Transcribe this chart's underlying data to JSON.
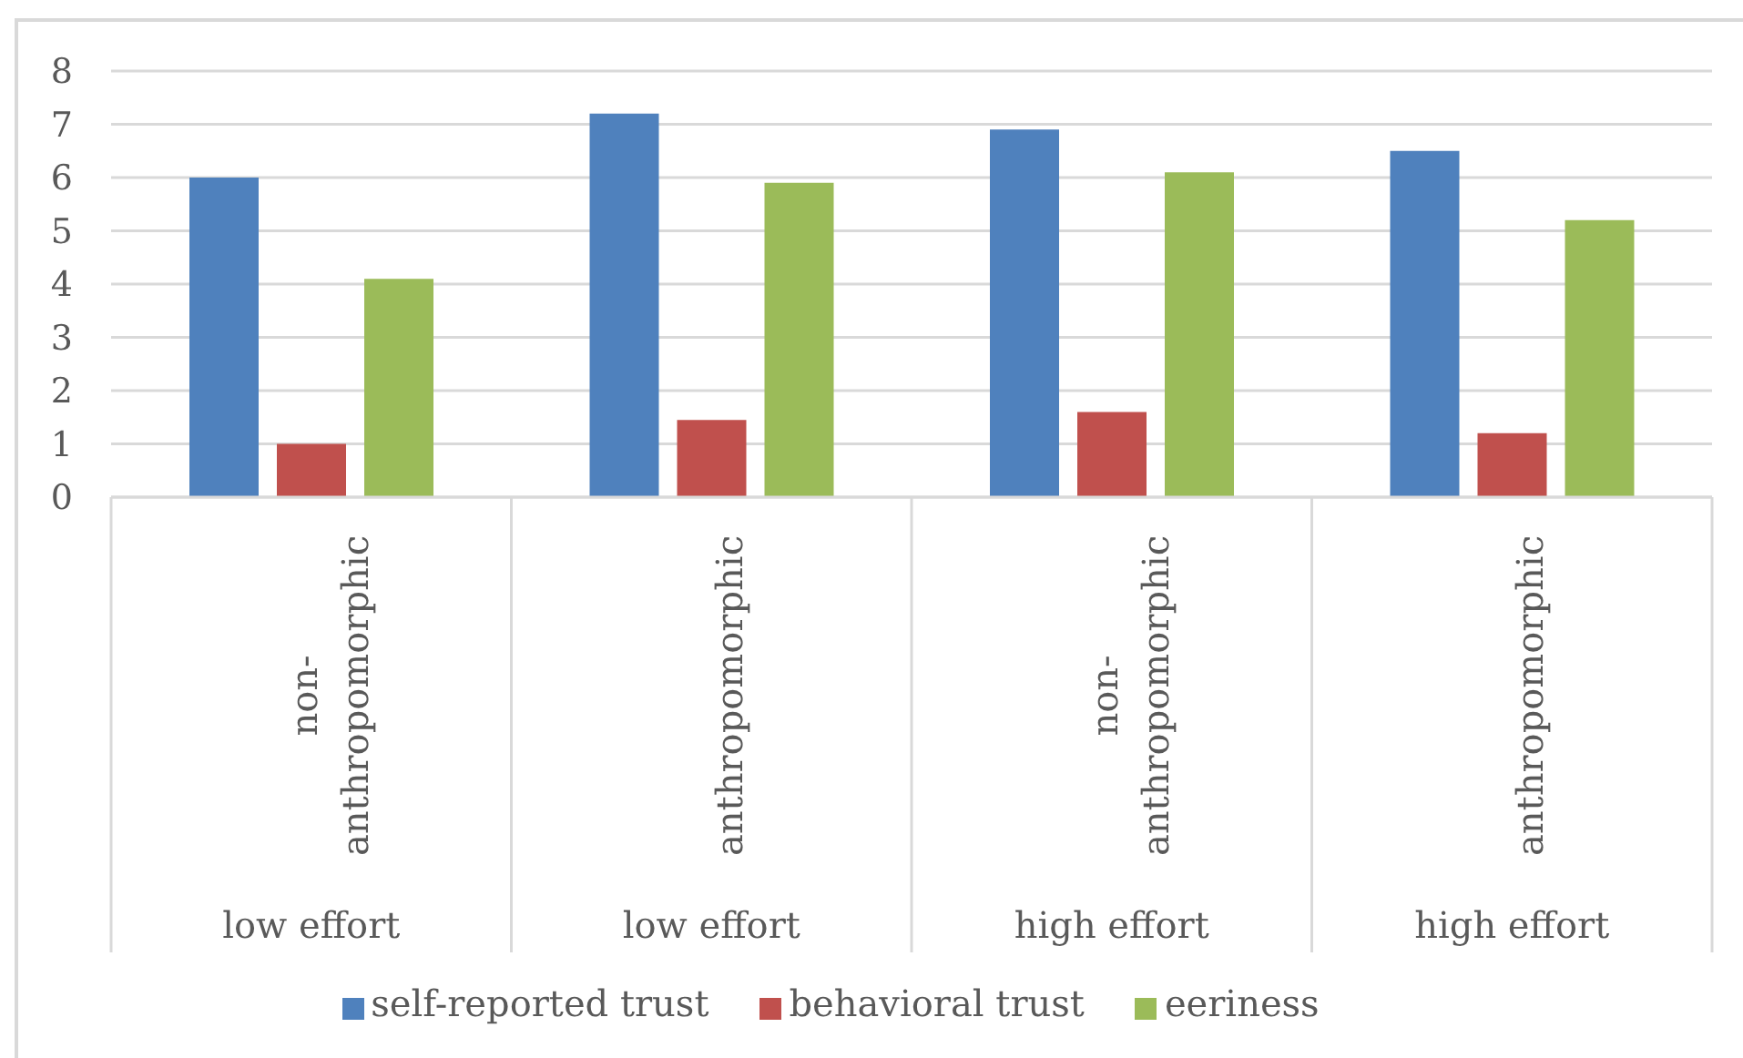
{
  "chart_data": {
    "type": "bar",
    "categories": [
      "non-anthropomorphic\nlow effort",
      "anthropomorphic\nlow effort",
      "non-anthropomorphic\nhigh effort",
      "anthropomorphic\nhigh effort"
    ],
    "series": [
      {
        "name": "self-reported trust",
        "color": "#4f81bd",
        "values": [
          6.0,
          7.2,
          6.9,
          6.5
        ]
      },
      {
        "name": "behavioral trust",
        "color": "#c0504d",
        "values": [
          1.0,
          1.45,
          1.6,
          1.2
        ]
      },
      {
        "name": "eeriness",
        "color": "#9bbb59",
        "values": [
          4.1,
          5.9,
          6.1,
          5.2
        ]
      }
    ],
    "ylim": [
      0,
      8
    ],
    "yticks": [
      0,
      1,
      2,
      3,
      4,
      5,
      6,
      7,
      8
    ],
    "grid": "y",
    "legend": "bottom"
  }
}
